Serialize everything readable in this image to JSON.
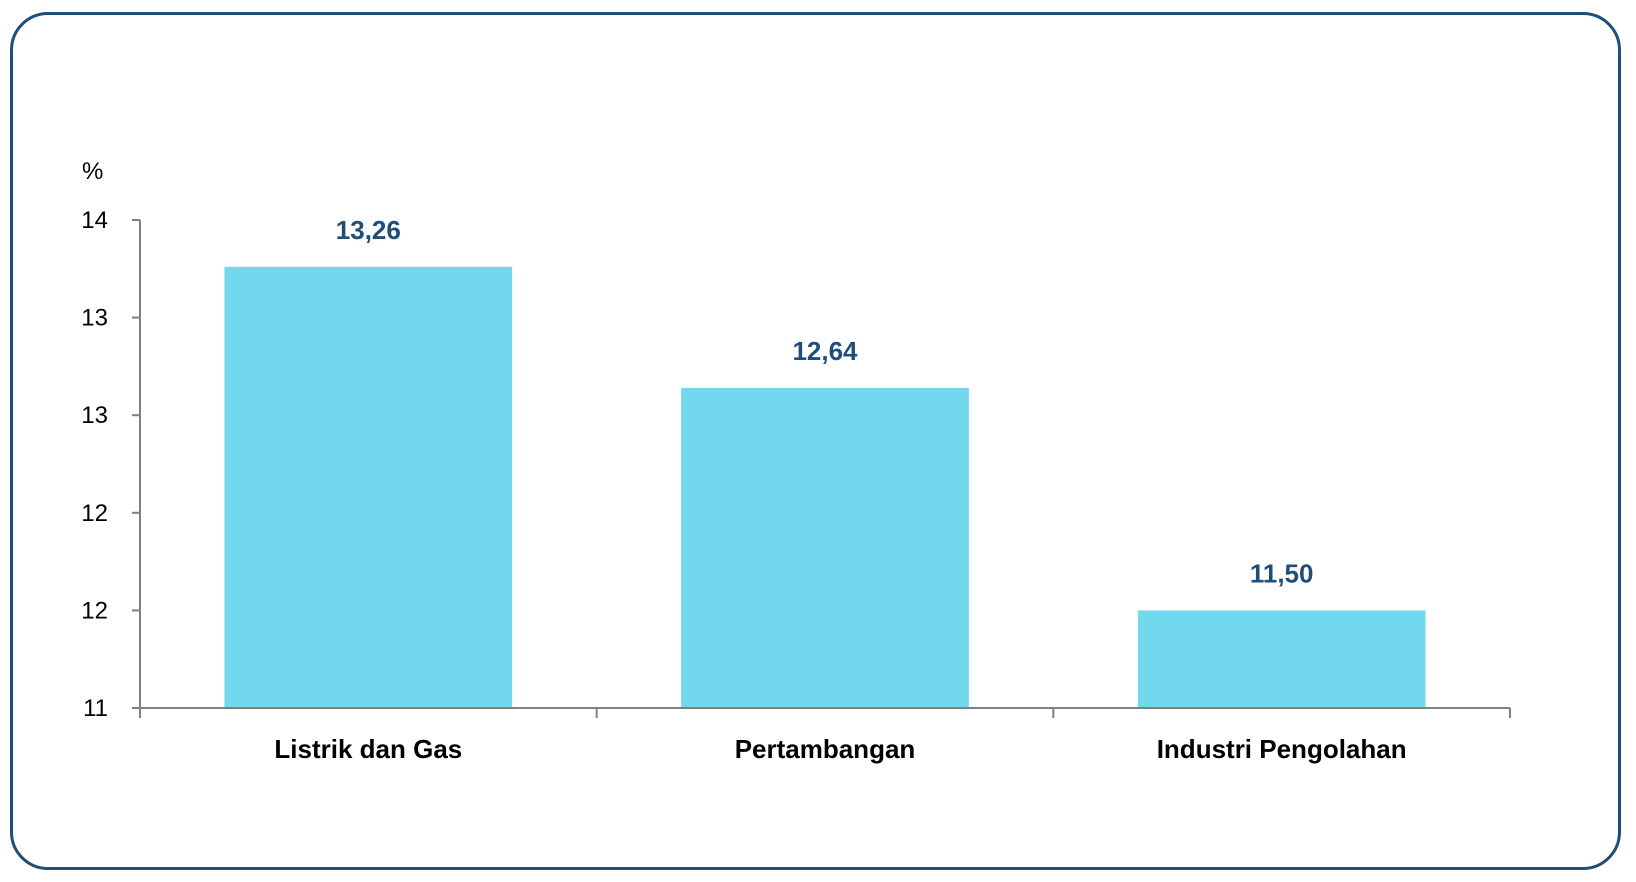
{
  "chart_data": {
    "type": "bar",
    "unit_label": "%",
    "categories": [
      "Listrik dan Gas",
      "Pertambangan",
      "Industri Pengolahan"
    ],
    "values": [
      13.26,
      12.64,
      11.5
    ],
    "data_labels": [
      "13,26",
      "12,64",
      "11,50"
    ],
    "y_ticks": [
      "11",
      "12",
      "12",
      "13",
      "13",
      "14"
    ],
    "ylim": [
      11,
      13.5
    ],
    "grid": false,
    "legend": "none",
    "colors": {
      "bar": "#72d8ee",
      "data_label": "#1f4e79",
      "frame": "#1f4e79",
      "axis": "#808080"
    }
  }
}
